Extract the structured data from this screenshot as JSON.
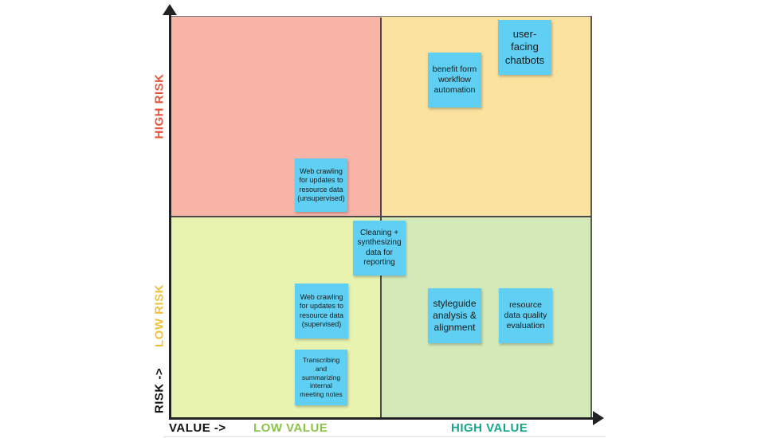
{
  "axes": {
    "y_high": "HIGH RISK",
    "y_low": "LOW RISK",
    "y_axis_label": "RISK ->",
    "x_axis_label": "VALUE ->",
    "x_low": "LOW VALUE",
    "x_high": "HIGH VALUE"
  },
  "colors": {
    "high_risk_low_value": "#f9b4a8",
    "high_risk_high_value": "#fbe29f",
    "low_risk_low_value": "#e8f3b0",
    "low_risk_high_value": "#d3eab8",
    "sticky_note": "#5fd0f3",
    "high_risk_label": "#e8533a",
    "low_risk_label": "#f0c23a",
    "low_value_label": "#8bc34a",
    "high_value_label": "#17a589"
  },
  "notes": {
    "webcrawl_unsupervised": "Web crawling for updates to resource data (unsupervised)",
    "cleaning": "Cleaning + synthesizing data for reporting",
    "webcrawl_supervised": "Web crawling for updates to resource data (supervised)",
    "transcribing": "Transcribing and summarizing internal meeting notes",
    "benefit_form": "benefit form workflow automation",
    "chatbots": "user-facing chatbots",
    "styleguide": "styleguide analysis & alignment",
    "data_quality": "resource data quality evaluation"
  }
}
